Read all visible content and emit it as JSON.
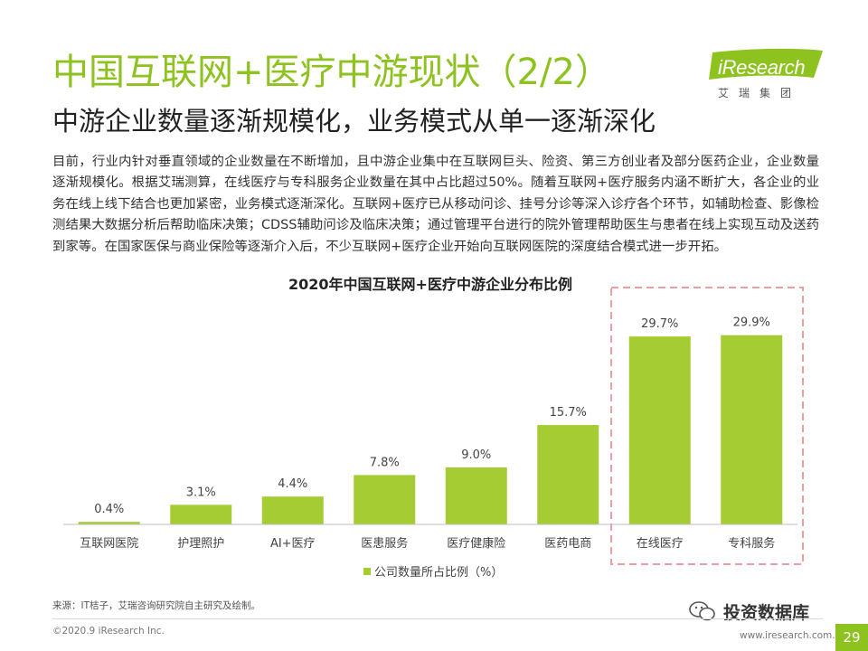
{
  "header": {
    "title": "中国互联网+医疗中游现状（2/2）",
    "subtitle": "中游企业数量逐渐规模化，业务模式从单一逐渐深化"
  },
  "logo": {
    "brand": "iResearch",
    "sub": "艾瑞集团"
  },
  "body_text": "目前，行业内针对垂直领域的企业数量在不断增加，且中游企业集中在互联网巨头、险资、第三方创业者及部分医药企业，企业数量逐渐规模化。根据艾瑞测算，在线医疗与专科服务企业数量在其中占比超过50%。随着互联网+医疗服务内涵不断扩大，各企业的业务在线上线下结合也更加紧密，业务模式逐渐深化。互联网+医疗已从移动问诊、挂号分诊等深入诊疗各个环节，如辅助检查、影像检测结果大数据分析后帮助临床决策；CDSS辅助问诊及临床决策；通过管理平台进行的院外管理帮助医生与患者在线上实现互动及送药到家等。在国家医保与商业保险等逐渐介入后，不少互联网+医疗企业开始向互联网医院的深度结合模式进一步开拓。",
  "chart_data": {
    "type": "bar",
    "title": "2020年中国互联网+医疗中游企业分布比例",
    "categories": [
      "互联网医院",
      "护理照护",
      "AI+医疗",
      "医患服务",
      "医疗健康险",
      "医药电商",
      "在线医疗",
      "专科服务"
    ],
    "series": [
      {
        "name": "公司数量所占比例（%）",
        "values": [
          0.4,
          3.1,
          4.4,
          7.8,
          9.0,
          15.7,
          29.7,
          29.9
        ],
        "labels": [
          "0.4%",
          "3.1%",
          "4.4%",
          "7.8%",
          "9.0%",
          "15.7%",
          "29.7%",
          "29.9%"
        ]
      }
    ],
    "ylim": [
      0,
      35
    ],
    "grid": false,
    "legend_position": "bottom-center",
    "highlight_categories": [
      "在线医疗",
      "专科服务"
    ],
    "colors": {
      "bar": "#a5cc32",
      "highlight_border": "#e8a0a4",
      "axis": "#bfbfbf"
    }
  },
  "footer": {
    "source": "来源：IT桔子，艾瑞咨询研究院自主研究及绘制。",
    "copyright": "©2020.9 iResearch Inc.",
    "url": "www.iresearch.com.cn",
    "page": "29",
    "watermark": "投资数据库"
  },
  "colors": {
    "accent": "#8dc21f"
  }
}
